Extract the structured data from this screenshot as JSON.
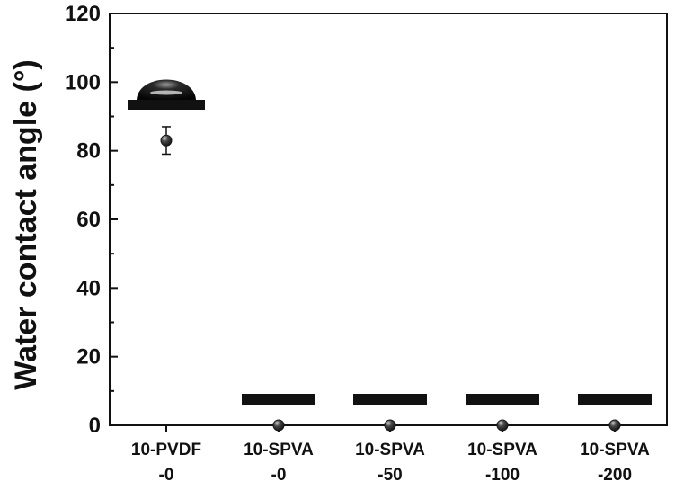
{
  "chart_data": {
    "type": "scatter",
    "title": "",
    "xlabel": "",
    "ylabel": "Water contact angle (°)",
    "ylim": [
      0,
      120
    ],
    "yticks": [
      0,
      20,
      40,
      60,
      80,
      100,
      120
    ],
    "categories": [
      [
        "10-PVDF",
        "-0"
      ],
      [
        "10-SPVA",
        "-0"
      ],
      [
        "10-SPVA",
        "-50"
      ],
      [
        "10-SPVA",
        "-100"
      ],
      [
        "10-SPVA",
        "-200"
      ]
    ],
    "series": [
      {
        "values": [
          83,
          0,
          0,
          0,
          0
        ],
        "error": [
          4,
          0,
          0,
          0,
          0
        ]
      }
    ],
    "droplet_insets": [
      "sessile-droplet",
      "spread-film",
      "spread-film",
      "spread-film",
      "spread-film"
    ],
    "grid": false,
    "legend": "none",
    "colors": {
      "axis": "#111111",
      "marker": "#1a1a1a",
      "inset": "#111111"
    }
  }
}
